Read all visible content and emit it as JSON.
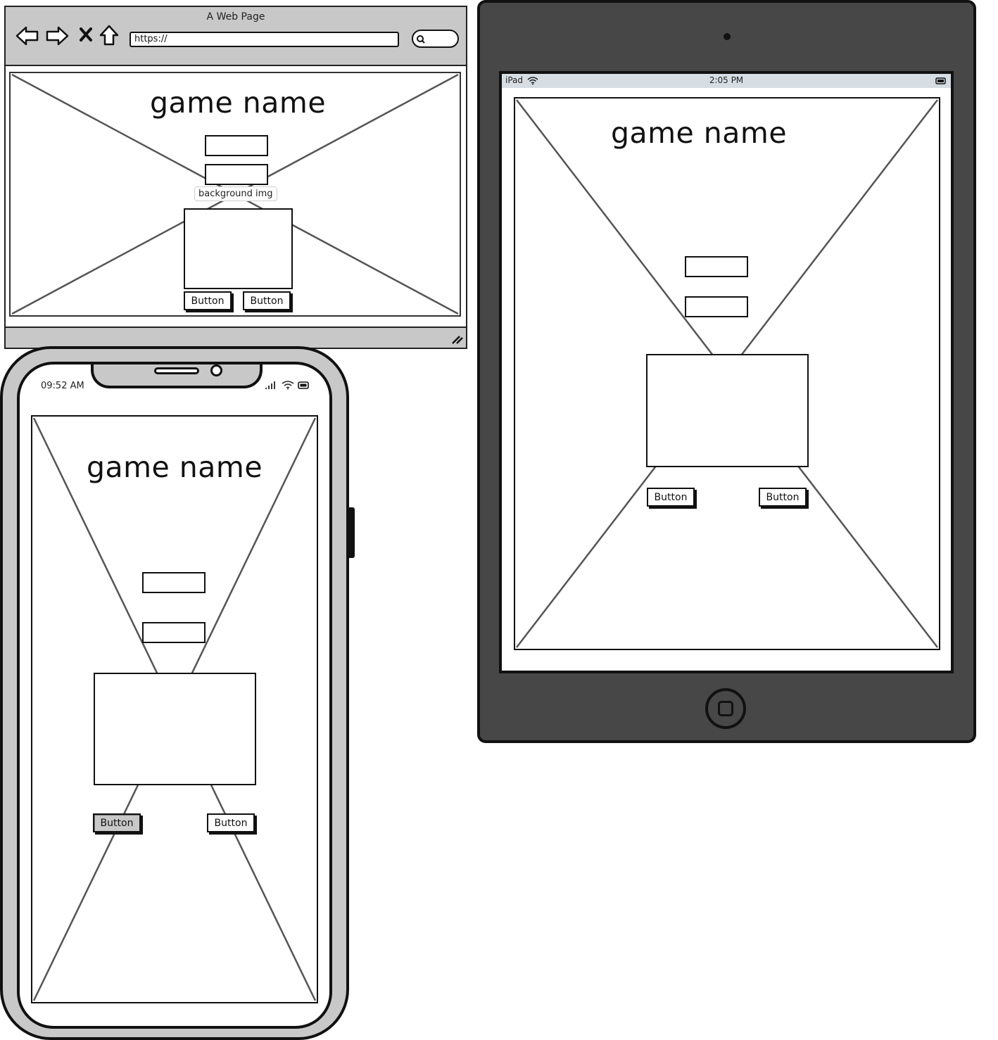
{
  "browser": {
    "title": "A Web Page",
    "url": "https://",
    "game_title": "game name",
    "bg_label": "background img",
    "button_left": "Button",
    "button_right": "Button"
  },
  "tablet": {
    "carrier": "iPad",
    "time": "2:05 PM",
    "game_title": "game name",
    "button_left": "Button",
    "button_right": "Button"
  },
  "phone": {
    "time": "09:52 AM",
    "game_title": "game name",
    "button_left": "Button",
    "button_right": "Button"
  }
}
